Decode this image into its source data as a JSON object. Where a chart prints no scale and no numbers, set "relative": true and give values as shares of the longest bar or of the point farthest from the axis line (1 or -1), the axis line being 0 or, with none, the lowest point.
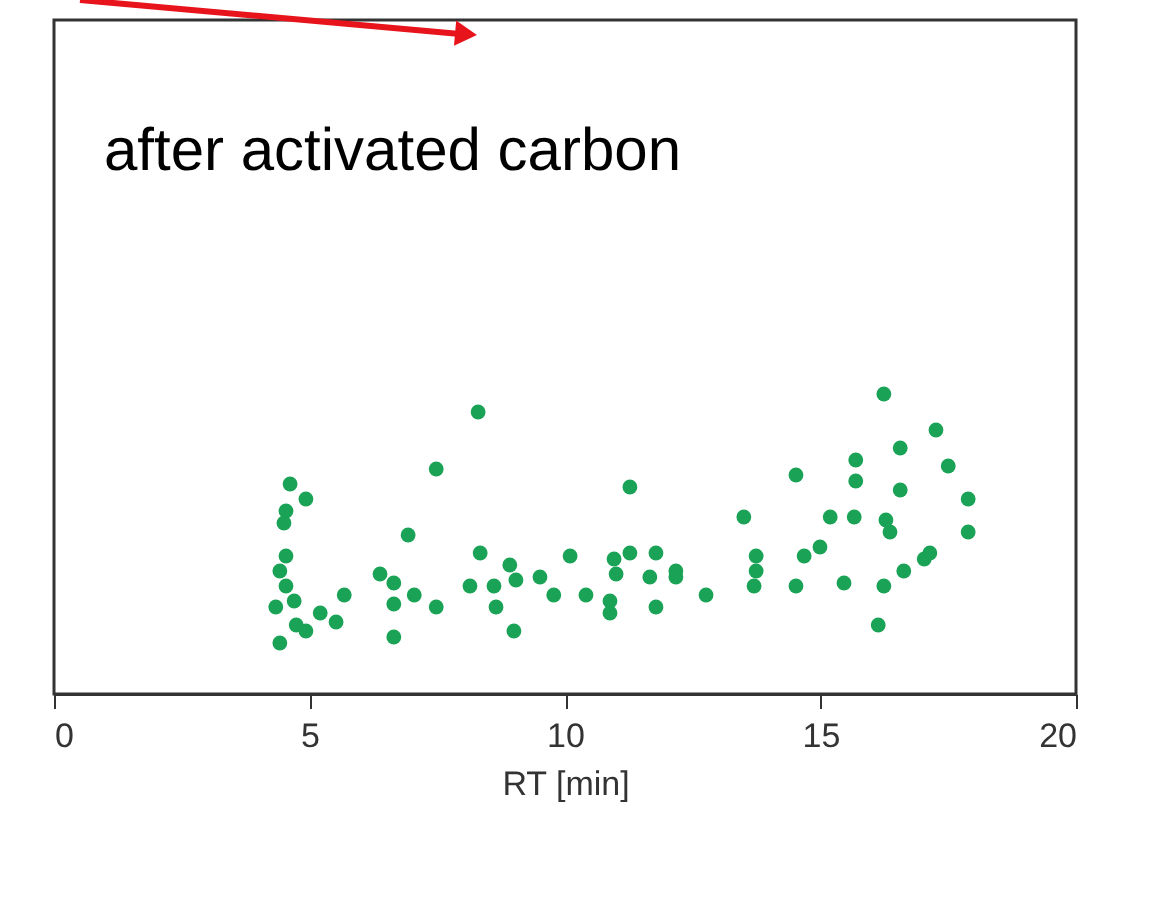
{
  "chart_data": {
    "type": "scatter",
    "relative": true,
    "xlabel": "RT [min]",
    "xlim": [
      0,
      20
    ],
    "xticks": [
      0,
      5,
      10,
      15,
      20
    ],
    "grid": false,
    "marker": "circle",
    "annotations": [
      "after activated carbon"
    ],
    "series": [
      {
        "color": "#1aa356",
        "x": [
          8.3,
          7.48,
          4.62,
          4.93,
          4.54,
          4.5,
          6.93,
          4.54,
          8.34,
          4.42,
          4.54,
          6.38,
          6.65,
          5.68,
          8.14,
          8.61,
          8.92,
          9.04,
          9.51,
          4.34,
          4.7,
          5.21,
          5.52,
          4.93,
          4.42,
          6.65,
          7.05,
          7.48,
          6.65,
          8.65,
          9.0,
          4.74,
          11.27,
          14.52,
          15.69,
          15.69,
          13.5,
          15.19,
          15.66,
          10.1,
          10.96,
          11.27,
          11.78,
          11.0,
          11.66,
          12.17,
          12.17,
          9.78,
          10.41,
          10.88,
          10.88,
          11.78,
          12.76,
          13.74,
          13.74,
          13.7,
          14.52,
          14.68,
          14.99,
          15.46,
          16.24,
          17.26,
          16.56,
          17.5,
          16.56,
          17.89,
          16.28,
          16.36,
          17.89,
          17.03,
          17.14,
          16.63,
          16.24,
          16.13
        ],
        "values": [
          0.94,
          0.75,
          0.7,
          0.65,
          0.61,
          0.57,
          0.53,
          0.46,
          0.47,
          0.41,
          0.36,
          0.4,
          0.37,
          0.33,
          0.36,
          0.36,
          0.43,
          0.38,
          0.39,
          0.29,
          0.31,
          0.27,
          0.24,
          0.21,
          0.17,
          0.3,
          0.33,
          0.29,
          0.19,
          0.29,
          0.21,
          0.23,
          0.69,
          0.73,
          0.78,
          0.71,
          0.59,
          0.59,
          0.59,
          0.46,
          0.45,
          0.47,
          0.47,
          0.4,
          0.39,
          0.41,
          0.39,
          0.33,
          0.33,
          0.31,
          0.27,
          0.29,
          0.33,
          0.46,
          0.41,
          0.36,
          0.36,
          0.46,
          0.49,
          0.37,
          1.0,
          0.88,
          0.82,
          0.76,
          0.68,
          0.65,
          0.58,
          0.54,
          0.54,
          0.45,
          0.47,
          0.41,
          0.36,
          0.23
        ]
      }
    ]
  }
}
